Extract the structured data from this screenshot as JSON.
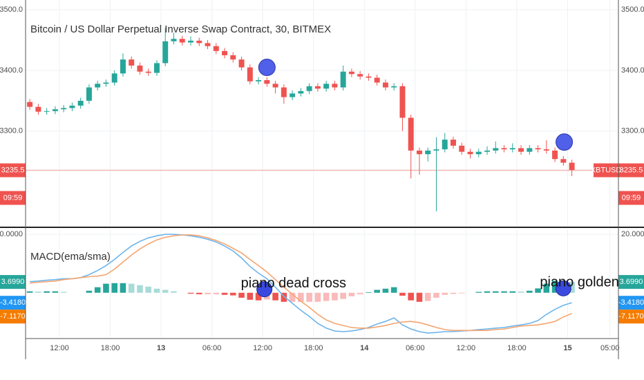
{
  "chart_data": [
    {
      "type": "candlestick",
      "title": "Bitcoin / US Dollar Perpetual Inverse Swap Contract, 30, BITMEX",
      "x": [
        -15.5,
        -14.5,
        -13.5,
        -12.5,
        -11.5,
        -10.5,
        -9.5,
        -8.5,
        -7.5,
        -6.5,
        -5.5,
        -4.5,
        -3.5,
        -2.5,
        -1.5,
        -0.5,
        0.5,
        1.5,
        2.5,
        3.5,
        4.5,
        5.5,
        6.5,
        7.5,
        8.5,
        9.5,
        10.5,
        11.5,
        12.5,
        13.5,
        14.5,
        15.5,
        16.5,
        17.5,
        18.5,
        19.5,
        20.5,
        21.5,
        22.5,
        23.5,
        24.5,
        25.5,
        26.5,
        27.5,
        28.5,
        29.5,
        30.5,
        31.5,
        32.5,
        33.5,
        34.5,
        35.5,
        36.5,
        37.5,
        38.5,
        39.5,
        40.5,
        41.5,
        42.5,
        43.5,
        44.5,
        45.5,
        46.5,
        47.5,
        48.5
      ],
      "open": [
        3348,
        3340,
        3332,
        3333,
        3336,
        3338,
        3342,
        3350,
        3372,
        3378,
        3380,
        3395,
        3418,
        3408,
        3398,
        3396,
        3412,
        3448,
        3452,
        3446,
        3449,
        3445,
        3440,
        3432,
        3425,
        3418,
        3405,
        3382,
        3384,
        3378,
        3372,
        3356,
        3362,
        3366,
        3374,
        3370,
        3378,
        3372,
        3398,
        3394,
        3390,
        3388,
        3380,
        3372,
        3374,
        3322,
        3268,
        3262,
        3268,
        3270,
        3286,
        3276,
        3266,
        3262,
        3266,
        3268,
        3272,
        3270,
        3272,
        3266,
        3272,
        3270,
        3268,
        3254,
        3248
      ],
      "high": [
        3353,
        3345,
        3338,
        3341,
        3343,
        3347,
        3355,
        3377,
        3383,
        3385,
        3400,
        3428,
        3423,
        3413,
        3403,
        3417,
        3470,
        3462,
        3457,
        3456,
        3454,
        3450,
        3445,
        3437,
        3430,
        3423,
        3410,
        3389,
        3389,
        3383,
        3377,
        3367,
        3371,
        3379,
        3379,
        3383,
        3383,
        3408,
        3403,
        3399,
        3395,
        3393,
        3385,
        3379,
        3379,
        3327,
        3273,
        3273,
        3290,
        3297,
        3291,
        3281,
        3271,
        3271,
        3275,
        3283,
        3277,
        3280,
        3277,
        3277,
        3277,
        3285,
        3273,
        3259,
        3253
      ],
      "low": [
        3335,
        3327,
        3327,
        3328,
        3331,
        3333,
        3337,
        3345,
        3367,
        3373,
        3375,
        3390,
        3403,
        3393,
        3391,
        3391,
        3407,
        3443,
        3441,
        3441,
        3440,
        3435,
        3427,
        3420,
        3413,
        3400,
        3377,
        3377,
        3373,
        3362,
        3345,
        3351,
        3357,
        3361,
        3365,
        3365,
        3367,
        3367,
        3389,
        3385,
        3383,
        3375,
        3367,
        3367,
        3300,
        3222,
        3228,
        3250,
        3168,
        3265,
        3271,
        3261,
        3255,
        3257,
        3261,
        3263,
        3265,
        3265,
        3261,
        3261,
        3265,
        3263,
        3249,
        3243,
        3226
      ],
      "close": [
        3340,
        3332,
        3333,
        3336,
        3338,
        3342,
        3350,
        3372,
        3378,
        3380,
        3395,
        3418,
        3408,
        3398,
        3396,
        3412,
        3448,
        3452,
        3446,
        3449,
        3445,
        3440,
        3432,
        3425,
        3418,
        3405,
        3382,
        3384,
        3378,
        3372,
        3356,
        3362,
        3366,
        3374,
        3370,
        3378,
        3372,
        3398,
        3394,
        3390,
        3388,
        3380,
        3372,
        3374,
        3322,
        3268,
        3262,
        3268,
        3270,
        3286,
        3276,
        3266,
        3262,
        3266,
        3268,
        3272,
        3270,
        3272,
        3266,
        3272,
        3270,
        3268,
        3254,
        3248,
        3236
      ],
      "up_color": "#26a69a",
      "down_color": "#ef5350",
      "xlim": [
        -16,
        54
      ],
      "ylim": [
        3145,
        3516
      ],
      "yticks": [
        {
          "value": 3300,
          "label": "3300.0"
        },
        {
          "value": 3400,
          "label": "3400.0"
        },
        {
          "value": 3500,
          "label": "3500.0"
        }
      ],
      "grid": true,
      "last_price": 3235.5,
      "countdown": "09:59",
      "symbol": "XBTUSD",
      "markers": [
        {
          "x": 12.5,
          "y": 3405,
          "color": "#5060e8"
        },
        {
          "x": 47.6,
          "y": 3282,
          "color": "#5060e8"
        }
      ]
    },
    {
      "type": "macd",
      "title": "MACD(ema/sma)",
      "series": [
        {
          "color": "#6cb4ec",
          "values": [
            3.8,
            4.0,
            4.3,
            4.5,
            4.8,
            4.8,
            5.2,
            6.2,
            7.6,
            9.3,
            11.4,
            13.8,
            16.0,
            17.6,
            18.8,
            19.5,
            20.0,
            20.0,
            19.8,
            19.5,
            19.0,
            18.3,
            17.4,
            16.0,
            14.3,
            11.9,
            9.0,
            6.7,
            4.8,
            1.9,
            -1.2,
            -3.6,
            -6.0,
            -8.1,
            -10.5,
            -12.1,
            -13.1,
            -13.3,
            -13.1,
            -12.6,
            -11.9,
            -10.7,
            -9.8,
            -8.6,
            -11.0,
            -12.4,
            -13.3,
            -13.8,
            -13.6,
            -13.3,
            -13.3,
            -13.1,
            -12.9,
            -12.6,
            -12.4,
            -12.1,
            -11.9,
            -11.4,
            -11.0,
            -10.5,
            -9.5,
            -7.4,
            -5.7,
            -4.3,
            -3.4
          ]
        },
        {
          "color": "#f5a46e",
          "values": [
            3.3,
            3.6,
            3.8,
            4.0,
            4.5,
            4.8,
            5.2,
            5.5,
            5.7,
            6.2,
            8.1,
            10.5,
            12.9,
            15.0,
            16.7,
            18.1,
            19.0,
            19.5,
            19.8,
            19.8,
            19.5,
            18.8,
            17.9,
            16.7,
            15.2,
            13.6,
            11.4,
            9.3,
            7.1,
            4.5,
            1.9,
            -0.5,
            -2.9,
            -5.0,
            -7.4,
            -9.3,
            -10.5,
            -11.2,
            -11.9,
            -12.1,
            -12.1,
            -11.7,
            -11.2,
            -10.5,
            -10.0,
            -9.8,
            -10.2,
            -11.0,
            -11.9,
            -12.6,
            -12.9,
            -12.9,
            -12.9,
            -12.9,
            -12.9,
            -12.6,
            -12.4,
            -11.9,
            -11.4,
            -11.2,
            -11.0,
            -10.5,
            -9.8,
            -8.3,
            -7.1
          ]
        }
      ],
      "histogram": {
        "up_color": "#26a69a",
        "down_color": "#ef5350",
        "values": [
          0.5,
          0.4,
          0.5,
          0.5,
          0.3,
          0.0,
          0.0,
          0.7,
          1.9,
          3.1,
          3.3,
          3.3,
          3.1,
          2.6,
          2.1,
          1.4,
          1.0,
          0.5,
          0.0,
          -0.3,
          -0.5,
          -0.5,
          -0.5,
          -0.7,
          -0.9,
          -1.7,
          -2.4,
          -2.6,
          -2.3,
          -2.6,
          -3.1,
          -3.1,
          -3.1,
          -3.1,
          -3.1,
          -2.8,
          -2.6,
          -2.1,
          -1.2,
          -0.5,
          0.2,
          1.0,
          1.4,
          1.9,
          -1.0,
          -2.6,
          -3.1,
          -2.8,
          -1.7,
          -0.7,
          -0.4,
          -0.2,
          0.0,
          0.3,
          0.5,
          0.5,
          0.5,
          0.5,
          0.4,
          0.7,
          1.5,
          3.1,
          4.1,
          4.0,
          3.7
        ]
      },
      "last_values": [
        {
          "value": 3.699,
          "label": "3.6990",
          "color": "#26a69a"
        },
        {
          "value": -3.418,
          "label": "-3.4180",
          "color": "#2196f3"
        },
        {
          "value": -7.117,
          "label": "-7.1170",
          "color": "#f57c00"
        }
      ],
      "ylim": [
        -15.2,
        21.7
      ],
      "yticks": [
        {
          "value": 20,
          "label": "20.0000"
        }
      ],
      "xticks": [
        {
          "value": -12,
          "label": "12:00"
        },
        {
          "value": -6,
          "label": "18:00"
        },
        {
          "value": 0,
          "label": "13"
        },
        {
          "value": 6,
          "label": "06:00"
        },
        {
          "value": 12,
          "label": "12:00"
        },
        {
          "value": 18,
          "label": "18:00"
        },
        {
          "value": 24,
          "label": "14"
        },
        {
          "value": 30,
          "label": "06:00"
        },
        {
          "value": 36,
          "label": "12:00"
        },
        {
          "value": 42,
          "label": "18:00"
        },
        {
          "value": 48,
          "label": "15"
        },
        {
          "value": 53,
          "label": "05:00"
        }
      ],
      "markers": [
        {
          "x": 12.2,
          "y": 1.2,
          "color": "#3a4ae0",
          "label": "piano dead cross"
        },
        {
          "x": 47.5,
          "y": 1.5,
          "color": "#3a4ae0",
          "label": "piano golden cro"
        }
      ]
    }
  ]
}
